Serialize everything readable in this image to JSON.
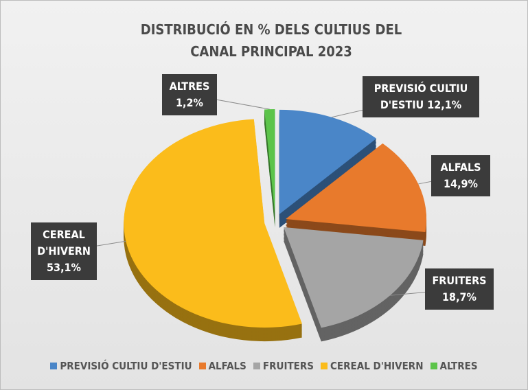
{
  "chart_data": {
    "type": "pie",
    "title": "DISTRIBUCIÓ EN % DELS CULTIUS DEL CANAL PRINCIPAL 2023",
    "categories": [
      "PREVISIÓ CULTIU D'ESTIU",
      "ALFALS",
      "FRUITERS",
      "CEREAL D'HIVERN",
      "ALTRES"
    ],
    "values": [
      12.1,
      14.9,
      18.7,
      53.1,
      1.2
    ],
    "value_labels": [
      "12,1%",
      "14,9%",
      "18,7%",
      "53,1%",
      "1,2%"
    ],
    "colors": [
      "#4a86c8",
      "#e87a2c",
      "#a5a5a5",
      "#fbbc1b",
      "#5cc44a"
    ],
    "legend": "bottom"
  }
}
